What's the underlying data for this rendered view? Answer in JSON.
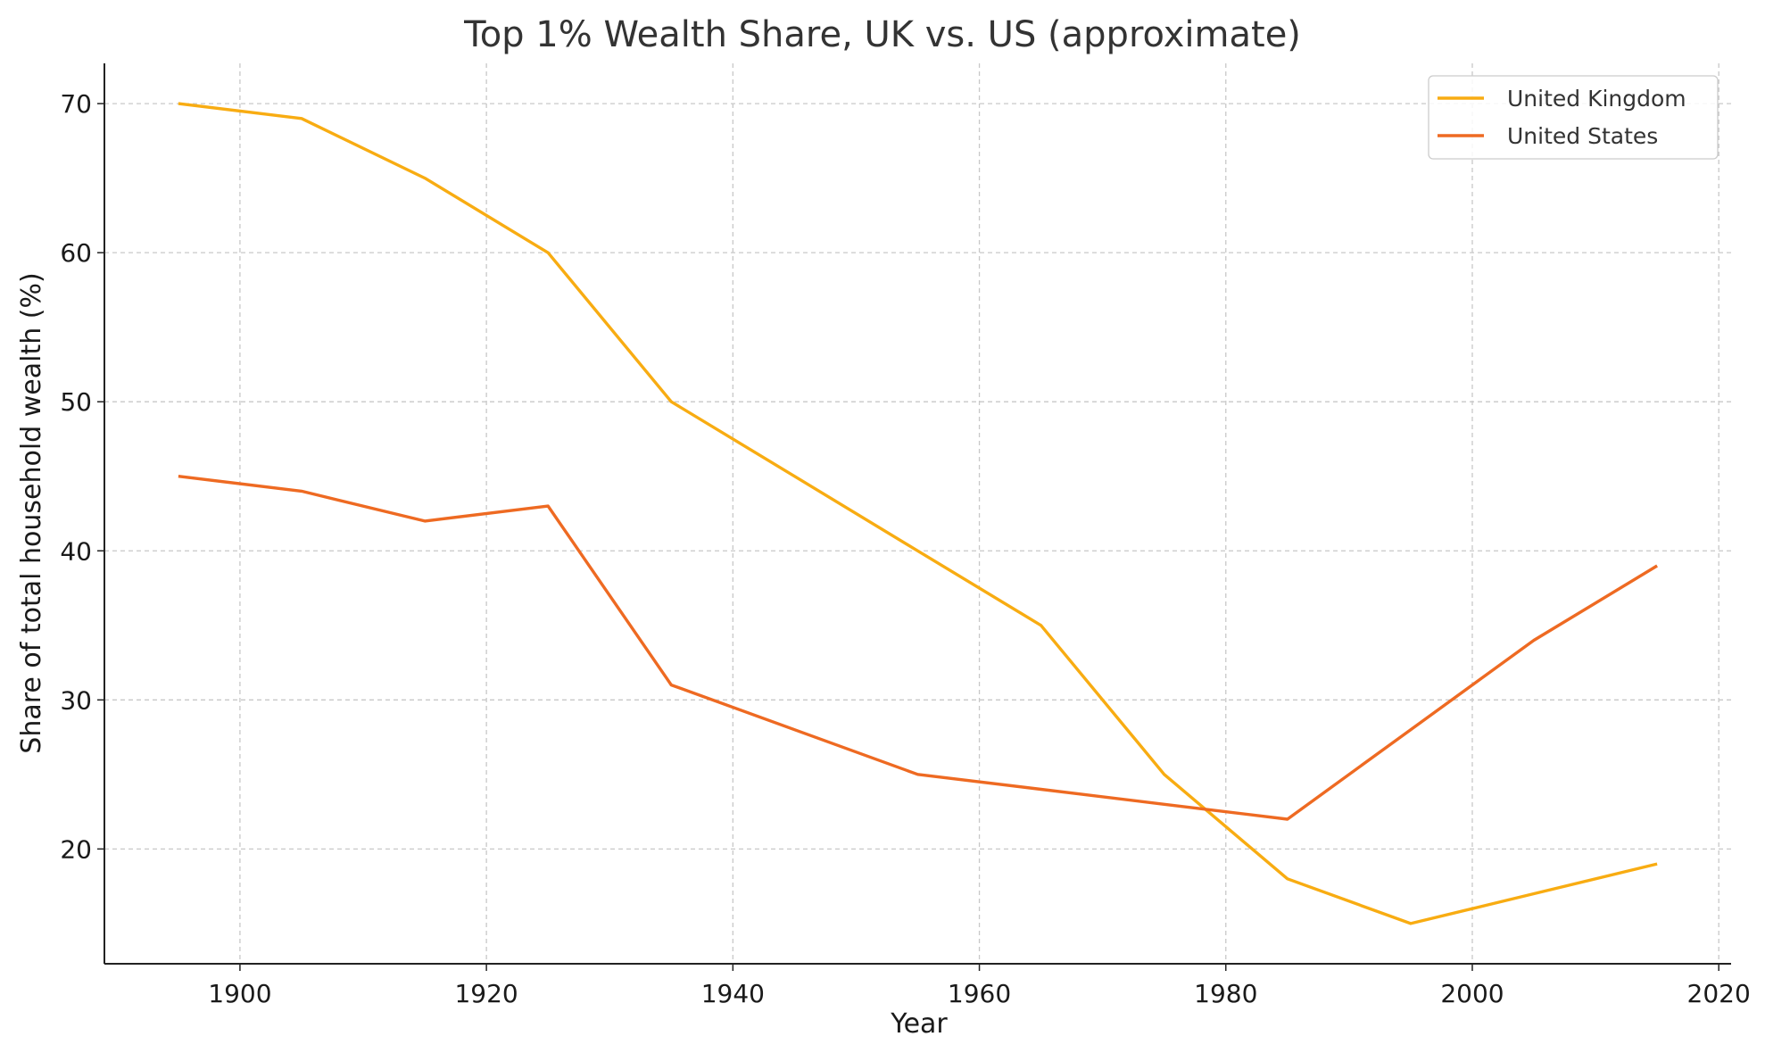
{
  "chart_data": {
    "type": "line",
    "title": "Top 1% Wealth Share, UK vs. US (approximate)",
    "xlabel": "Year",
    "ylabel": "Share of total household wealth (%)",
    "xlim": [
      1889,
      2021
    ],
    "ylim": [
      12.3,
      72.7
    ],
    "xticks": [
      1900,
      1920,
      1940,
      1960,
      1980,
      2000,
      2020
    ],
    "yticks": [
      20,
      30,
      40,
      50,
      60,
      70
    ],
    "grid": true,
    "legend_position": "top-right",
    "x": [
      1895,
      1905,
      1915,
      1925,
      1935,
      1945,
      1955,
      1965,
      1975,
      1985,
      1995,
      2005,
      2015
    ],
    "series": [
      {
        "name": "United Kingdom",
        "color": "#F8AC12",
        "values": [
          70,
          69,
          65,
          60,
          50,
          45,
          40,
          35,
          25,
          18,
          15,
          17,
          19
        ]
      },
      {
        "name": "United States",
        "color": "#EE6A22",
        "values": [
          45,
          44,
          42,
          43,
          31,
          28,
          25,
          24,
          23,
          22,
          28,
          34,
          39
        ]
      }
    ]
  }
}
